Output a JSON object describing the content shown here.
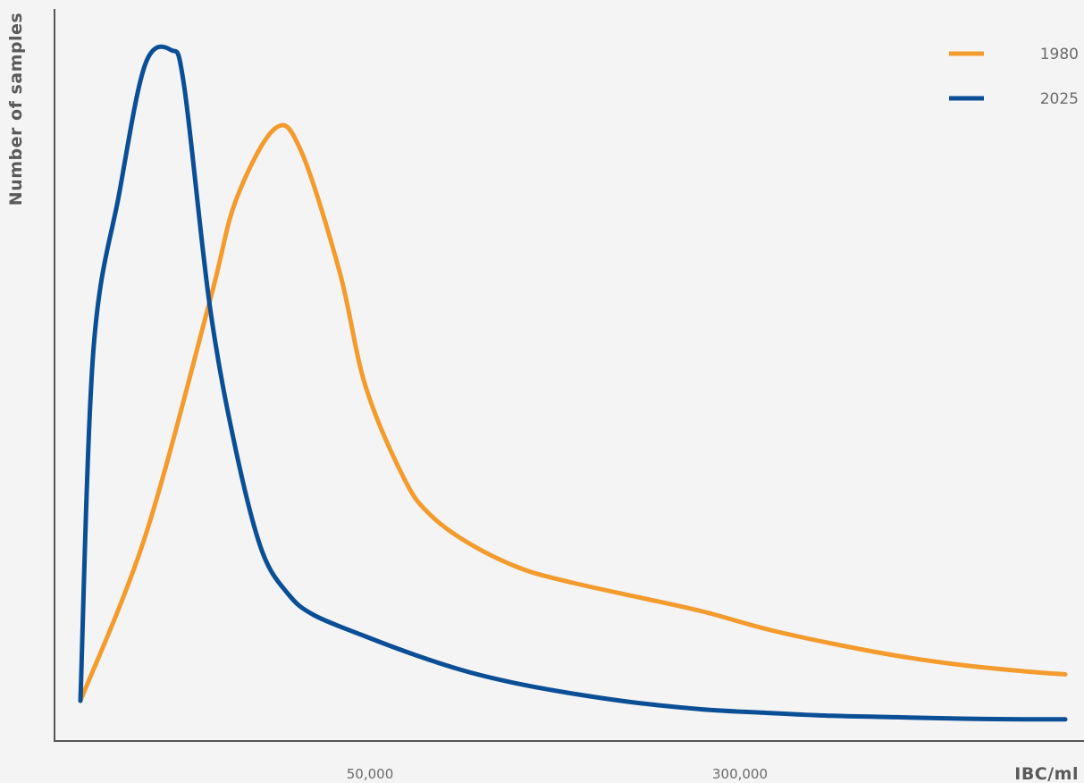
{
  "chart_data": {
    "type": "line",
    "title": "",
    "xlabel": "IBC/ml",
    "ylabel": "Number of samples",
    "x_ticks": [
      {
        "value": 50000,
        "label": "50,000"
      },
      {
        "value": 300000,
        "label": "300,000"
      }
    ],
    "y_ticks": [],
    "grid": false,
    "legend": {
      "placement": "top-right"
    },
    "series": [
      {
        "name": "1980",
        "color": "#f39b2d",
        "points": [
          [
            2,
            2
          ],
          [
            7,
            25
          ],
          [
            12,
            58
          ],
          [
            14,
            72
          ],
          [
            17,
            82
          ],
          [
            19,
            79
          ],
          [
            22,
            62
          ],
          [
            24,
            46
          ],
          [
            27,
            33
          ],
          [
            29,
            28
          ],
          [
            32,
            24
          ],
          [
            36,
            20.5
          ],
          [
            40,
            18.5
          ],
          [
            45,
            16.5
          ],
          [
            50,
            14.5
          ],
          [
            55,
            12
          ],
          [
            60,
            10
          ],
          [
            65,
            8.3
          ],
          [
            70,
            7
          ],
          [
            75,
            6.1
          ],
          [
            78,
            5.7
          ]
        ]
      },
      {
        "name": "2025",
        "color": "#0a4e96",
        "points": [
          [
            2,
            2
          ],
          [
            3,
            51
          ],
          [
            5,
            73
          ],
          [
            7,
            91
          ],
          [
            9,
            93
          ],
          [
            10,
            88
          ],
          [
            12,
            57
          ],
          [
            14,
            37
          ],
          [
            16,
            23
          ],
          [
            18,
            17
          ],
          [
            20,
            14
          ],
          [
            24,
            11
          ],
          [
            28,
            8.3
          ],
          [
            32,
            6
          ],
          [
            36,
            4.3
          ],
          [
            40,
            3
          ],
          [
            45,
            1.7
          ],
          [
            50,
            0.8
          ],
          [
            55,
            0.3
          ],
          [
            60,
            -0.1
          ],
          [
            65,
            -0.3
          ],
          [
            70,
            -0.5
          ],
          [
            75,
            -0.6
          ],
          [
            78,
            -0.6
          ]
        ]
      }
    ]
  }
}
